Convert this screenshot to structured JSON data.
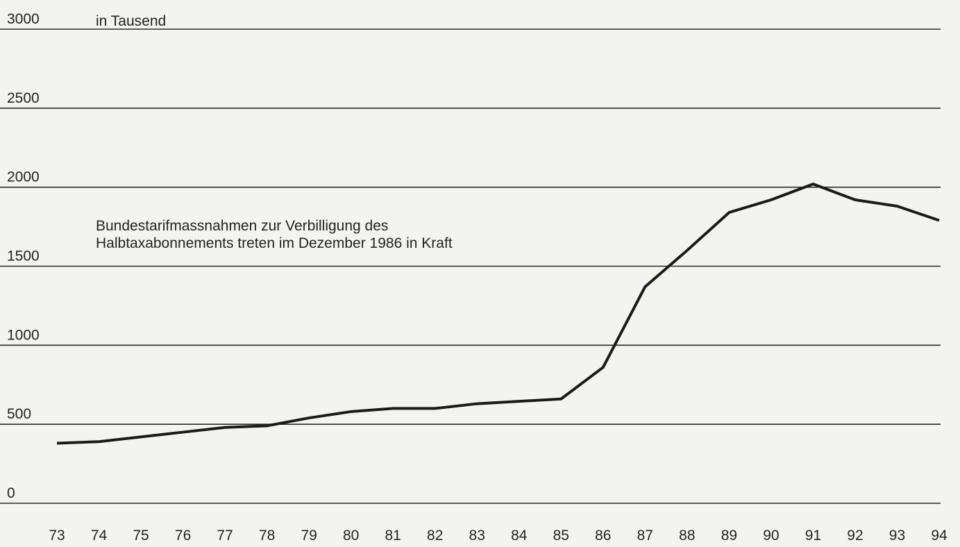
{
  "chart_data": {
    "type": "line",
    "unit_label": "in Tausend",
    "annotation": [
      "Bundestarifmassnahmen zur Verbilligung des",
      "Halbtaxabonnements treten im Dezember 1986 in Kraft"
    ],
    "categories": [
      "73",
      "74",
      "75",
      "76",
      "77",
      "78",
      "79",
      "80",
      "81",
      "82",
      "83",
      "84",
      "85",
      "86",
      "87",
      "88",
      "89",
      "90",
      "91",
      "92",
      "93",
      "94"
    ],
    "values": [
      380,
      390,
      420,
      450,
      480,
      490,
      540,
      580,
      600,
      600,
      630,
      645,
      660,
      860,
      1370,
      1600,
      1840,
      1920,
      2020,
      1920,
      1880,
      1790
    ],
    "color": "#1a1a1a",
    "ylim": [
      0,
      3000
    ],
    "yticks": [
      0,
      500,
      1000,
      1500,
      2000,
      2500,
      3000
    ],
    "grid": true
  }
}
